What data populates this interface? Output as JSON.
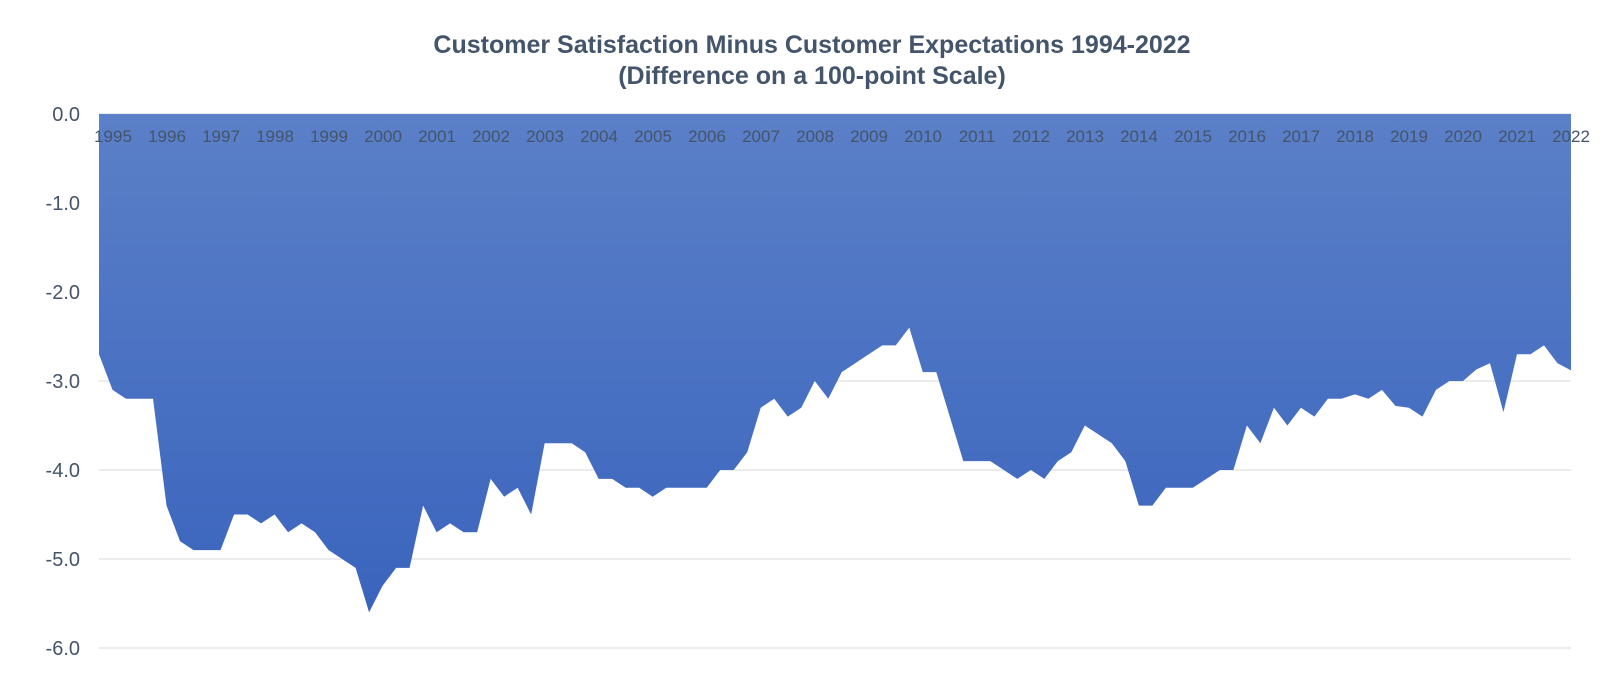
{
  "chart_data": {
    "type": "area",
    "title": "Customer Satisfaction Minus Customer Expectations 1994-2022",
    "subtitle": "(Difference on a 100-point Scale)",
    "xlabel": "",
    "ylabel": "",
    "ylim": [
      -6.0,
      0.0
    ],
    "yticks": [
      "0.0",
      "-1.0",
      "-2.0",
      "-3.0",
      "-4.0",
      "-5.0",
      "-6.0"
    ],
    "x_tick_labels": [
      "1995",
      "1996",
      "1997",
      "1998",
      "1999",
      "2000",
      "2001",
      "2002",
      "2003",
      "2004",
      "2005",
      "2006",
      "2007",
      "2008",
      "2009",
      "2010",
      "2011",
      "2012",
      "2013",
      "2014",
      "2015",
      "2016",
      "2017",
      "2018",
      "2019",
      "2020",
      "2021",
      "2022"
    ],
    "grid": true,
    "colors": {
      "fill_top": "#5B80C8",
      "fill_bottom": "#3A64BD",
      "grid": "#D9D9D9",
      "text": "#44546A"
    },
    "series": [
      {
        "values": [
          -2.7,
          -3.1,
          -3.2,
          -3.2,
          -3.2,
          -4.4,
          -4.8,
          -4.9,
          -4.9,
          -4.9,
          -4.5,
          -4.5,
          -4.6,
          -4.5,
          -4.7,
          -4.6,
          -4.7,
          -4.9,
          -5.0,
          -5.1,
          -5.6,
          -5.3,
          -5.1,
          -5.1,
          -4.4,
          -4.7,
          -4.6,
          -4.7,
          -4.7,
          -4.1,
          -4.3,
          -4.2,
          -4.5,
          -3.7,
          -3.7,
          -3.7,
          -3.8,
          -4.1,
          -4.1,
          -4.2,
          -4.2,
          -4.3,
          -4.2,
          -4.2,
          -4.2,
          -4.2,
          -4.0,
          -4.0,
          -3.8,
          -3.3,
          -3.2,
          -3.4,
          -3.3,
          -3.0,
          -3.2,
          -2.9,
          -2.8,
          -2.7,
          -2.6,
          -2.6,
          -2.4,
          -2.9,
          -2.9,
          -3.4,
          -3.9,
          -3.9,
          -3.9,
          -4.0,
          -4.1,
          -4.0,
          -4.1,
          -3.9,
          -3.8,
          -3.5,
          -3.6,
          -3.7,
          -3.9,
          -4.4,
          -4.4,
          -4.2,
          -4.2,
          -4.2,
          -4.1,
          -4.0,
          -4.0,
          -3.5,
          -3.7,
          -3.3,
          -3.5,
          -3.3,
          -3.4,
          -3.2,
          -3.2,
          -3.15,
          -3.2,
          -3.1,
          -3.28,
          -3.3,
          -3.4,
          -3.1,
          -3.0,
          -3.0,
          -2.87,
          -2.8,
          -3.35,
          -2.7,
          -2.7,
          -2.6,
          -2.8,
          -2.88
        ]
      }
    ]
  }
}
